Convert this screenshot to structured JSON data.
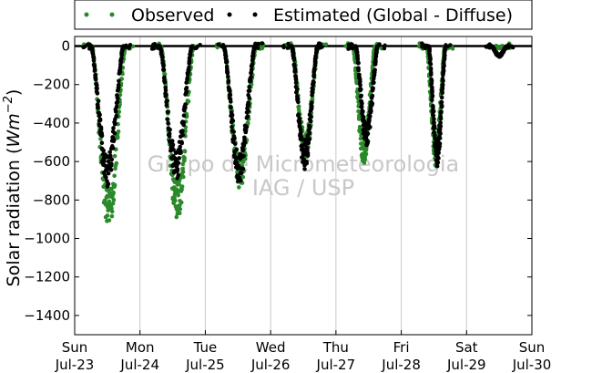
{
  "chart_data": {
    "type": "scatter",
    "ylabel": "Solar radiation (Wm^-2)",
    "ylabel_parts": {
      "prefix": "Solar radiation (",
      "unit_base": "Wm",
      "unit_exp": "−2",
      "suffix": ")"
    },
    "ylim": [
      -1500,
      50
    ],
    "yticks": [
      0,
      -200,
      -400,
      -600,
      -800,
      -1000,
      -1200,
      -1400
    ],
    "xlim": [
      0,
      7
    ],
    "xticks": [
      {
        "day": "Sun",
        "date": "Jul-23"
      },
      {
        "day": "Mon",
        "date": "Jul-24"
      },
      {
        "day": "Tue",
        "date": "Jul-25"
      },
      {
        "day": "Wed",
        "date": "Jul-26"
      },
      {
        "day": "Thu",
        "date": "Jul-27"
      },
      {
        "day": "Fri",
        "date": "Jul-28"
      },
      {
        "day": "Sat",
        "date": "Jul-29"
      },
      {
        "day": "Sun",
        "date": "Jul-30"
      }
    ],
    "grid": "vertical",
    "legend_position": "top, outside the plot",
    "watermark": [
      "Grupo de Micrometeorologia",
      "IAG / USP"
    ],
    "series": [
      {
        "name": "Observed",
        "color": "#2a8a2a",
        "daily_troughs": [
          {
            "day": "Jul-23",
            "center": 0.52,
            "halfwidth": 0.26,
            "min": -860
          },
          {
            "day": "Jul-24",
            "center": 1.57,
            "halfwidth": 0.25,
            "min": -820
          },
          {
            "day": "Jul-25",
            "center": 2.53,
            "halfwidth": 0.25,
            "min": -660
          },
          {
            "day": "Jul-26",
            "center": 3.53,
            "halfwidth": 0.2,
            "min": -530
          },
          {
            "day": "Jul-27",
            "center": 4.43,
            "halfwidth": 0.17,
            "min": -550
          },
          {
            "day": "Jul-28",
            "center": 5.53,
            "halfwidth": 0.14,
            "min": -560
          },
          {
            "day": "Jul-29",
            "center": 6.5,
            "halfwidth": 0.05,
            "min": -10
          }
        ]
      },
      {
        "name": "Estimated (Global - Diffuse)",
        "color": "#000000",
        "daily_troughs": [
          {
            "day": "Jul-23",
            "center": 0.5,
            "halfwidth": 0.25,
            "min": -650
          },
          {
            "day": "Jul-24",
            "center": 1.55,
            "halfwidth": 0.25,
            "min": -620
          },
          {
            "day": "Jul-25",
            "center": 2.52,
            "halfwidth": 0.24,
            "min": -640
          },
          {
            "day": "Jul-26",
            "center": 3.52,
            "halfwidth": 0.2,
            "min": -570
          },
          {
            "day": "Jul-27",
            "center": 4.47,
            "halfwidth": 0.17,
            "min": -470
          },
          {
            "day": "Jul-28",
            "center": 5.55,
            "halfwidth": 0.13,
            "min": -560
          },
          {
            "day": "Jul-29",
            "center": 6.5,
            "halfwidth": 0.12,
            "min": -50
          }
        ]
      }
    ]
  }
}
